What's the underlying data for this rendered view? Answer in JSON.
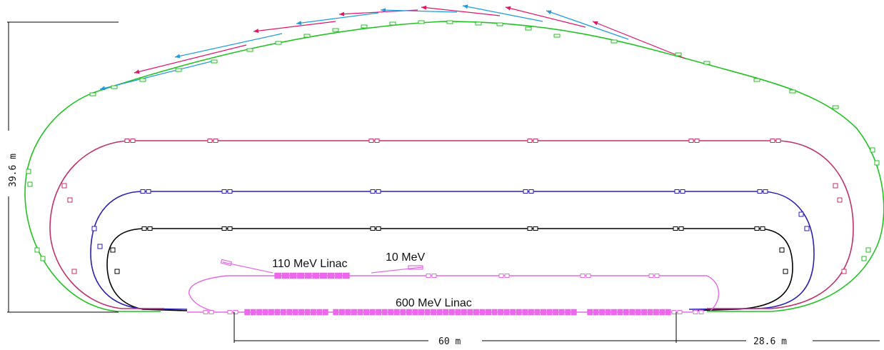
{
  "labels": {
    "linac_110": "110  MeV Linac",
    "injector_10": "10 MeV",
    "linac_600": "600  MeV  Linac"
  },
  "dimensions": {
    "height": "39.6  m",
    "length_main": "60  m",
    "length_side": "28.6  m"
  },
  "colors": {
    "pass1": "#000000",
    "pass2": "#2b1fb3",
    "pass3": "#c0306a",
    "pass4": "#22c222",
    "linac": "#e36ce3",
    "linac_fill": "#ee66ee",
    "ray_a": "#e0156a",
    "ray_b": "#1e9be0",
    "dim": "#000000"
  }
}
